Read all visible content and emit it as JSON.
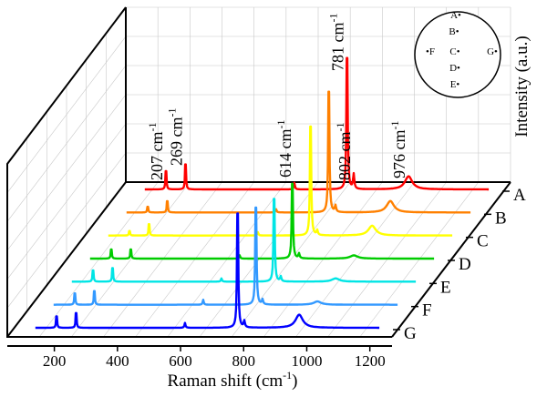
{
  "chart_data": {
    "type": "line",
    "style": "3d-waterfall",
    "title": "",
    "xlabel": "Raman shift (cm",
    "xlabel_sup": "-1",
    "xlabel_suffix": ")",
    "ylabel": "Intensity (a.u.)",
    "xlim": [
      100,
      1250
    ],
    "x_ticks": [
      200,
      400,
      600,
      800,
      1000,
      1200
    ],
    "x_tick_labels": [
      "200",
      "400",
      "600",
      "800",
      "1000",
      "1200"
    ],
    "grid": true,
    "peaks_cm": [
      207,
      269,
      614,
      781,
      802,
      976
    ],
    "annotations": [
      {
        "text": "269 cm",
        "sup": "-1",
        "x": 269
      },
      {
        "text": "207 cm",
        "sup": "-1",
        "x": 207
      },
      {
        "text": "614 cm",
        "sup": "-1",
        "x": 614
      },
      {
        "text": "781 cm",
        "sup": "-1",
        "x": 781
      },
      {
        "text": "802 cm",
        "sup": "-1",
        "x": 802
      },
      {
        "text": "976 cm",
        "sup": "-1",
        "x": 976
      }
    ],
    "series": [
      {
        "name": "A",
        "color": "#ff0000",
        "peaks": [
          [
            207,
            0.16
          ],
          [
            269,
            0.22
          ],
          [
            614,
            0.04
          ],
          [
            781,
            1.0
          ],
          [
            802,
            0.09
          ],
          [
            976,
            0.08
          ]
        ]
      },
      {
        "name": "B",
        "color": "#ff8000",
        "peaks": [
          [
            207,
            0.05
          ],
          [
            269,
            0.1
          ],
          [
            614,
            0.02
          ],
          [
            781,
            0.92
          ],
          [
            802,
            0.04
          ],
          [
            976,
            0.07
          ]
        ]
      },
      {
        "name": "C",
        "color": "#ffff00",
        "peaks": [
          [
            207,
            0.04
          ],
          [
            269,
            0.1
          ],
          [
            614,
            0.02
          ],
          [
            781,
            0.83
          ],
          [
            802,
            0.03
          ],
          [
            976,
            0.06
          ]
        ]
      },
      {
        "name": "D",
        "color": "#00cc00",
        "peaks": [
          [
            207,
            0.08
          ],
          [
            269,
            0.08
          ],
          [
            614,
            0.02
          ],
          [
            781,
            0.57
          ],
          [
            802,
            0.03
          ],
          [
            976,
            0.02
          ]
        ]
      },
      {
        "name": "E",
        "color": "#00e5e5",
        "peaks": [
          [
            207,
            0.1
          ],
          [
            269,
            0.12
          ],
          [
            614,
            0.02
          ],
          [
            781,
            0.63
          ],
          [
            802,
            0.03
          ],
          [
            976,
            0.02
          ]
        ]
      },
      {
        "name": "F",
        "color": "#3399ff",
        "peaks": [
          [
            207,
            0.1
          ],
          [
            269,
            0.12
          ],
          [
            614,
            0.03
          ],
          [
            781,
            0.74
          ],
          [
            802,
            0.03
          ],
          [
            976,
            0.02
          ]
        ]
      },
      {
        "name": "G",
        "color": "#0000ff",
        "peaks": [
          [
            207,
            0.1
          ],
          [
            269,
            0.13
          ],
          [
            614,
            0.03
          ],
          [
            781,
            0.87
          ],
          [
            802,
            0.04
          ],
          [
            976,
            0.08
          ]
        ]
      }
    ],
    "inset_points": [
      "A",
      "B",
      "C",
      "D",
      "E",
      "F",
      "G"
    ]
  }
}
